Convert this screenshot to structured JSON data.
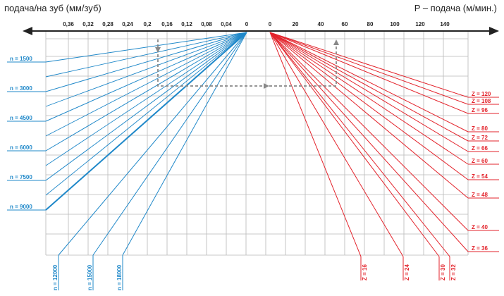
{
  "header": {
    "left_title": "подача/на зуб (мм/зуб)",
    "right_title": "P – подача (м/мин.)"
  },
  "colors": {
    "blue": "#1f88c9",
    "red": "#e3232b",
    "grid": "#b8b8b8",
    "axis": "#222222",
    "dashed": "#888888"
  },
  "chart_data": {
    "type": "line",
    "left_axis": {
      "tick_labels": [
        "0,36",
        "0,32",
        "0,28",
        "0,24",
        "0,2",
        "0,16",
        "0,12",
        "0,08",
        "0,04",
        "0"
      ],
      "series_labels": [
        "n = 1500",
        "n = 3000",
        "n = 4500",
        "n = 6000",
        "n = 7500",
        "n = 9000",
        "n = 12000",
        "n = 15000",
        "n = 18000"
      ]
    },
    "right_axis": {
      "tick_labels": [
        "0",
        "20",
        "40",
        "60",
        "80",
        "100",
        "120",
        "140"
      ],
      "series_labels": [
        "Z = 120",
        "Z = 108",
        "Z = 96",
        "Z = 80",
        "Z = 72",
        "Z = 66",
        "Z = 60",
        "Z = 54",
        "Z = 48",
        "Z = 40",
        "Z = 36",
        "Z = 16",
        "Z = 24",
        "Z = 30",
        "Z = 32"
      ]
    }
  }
}
